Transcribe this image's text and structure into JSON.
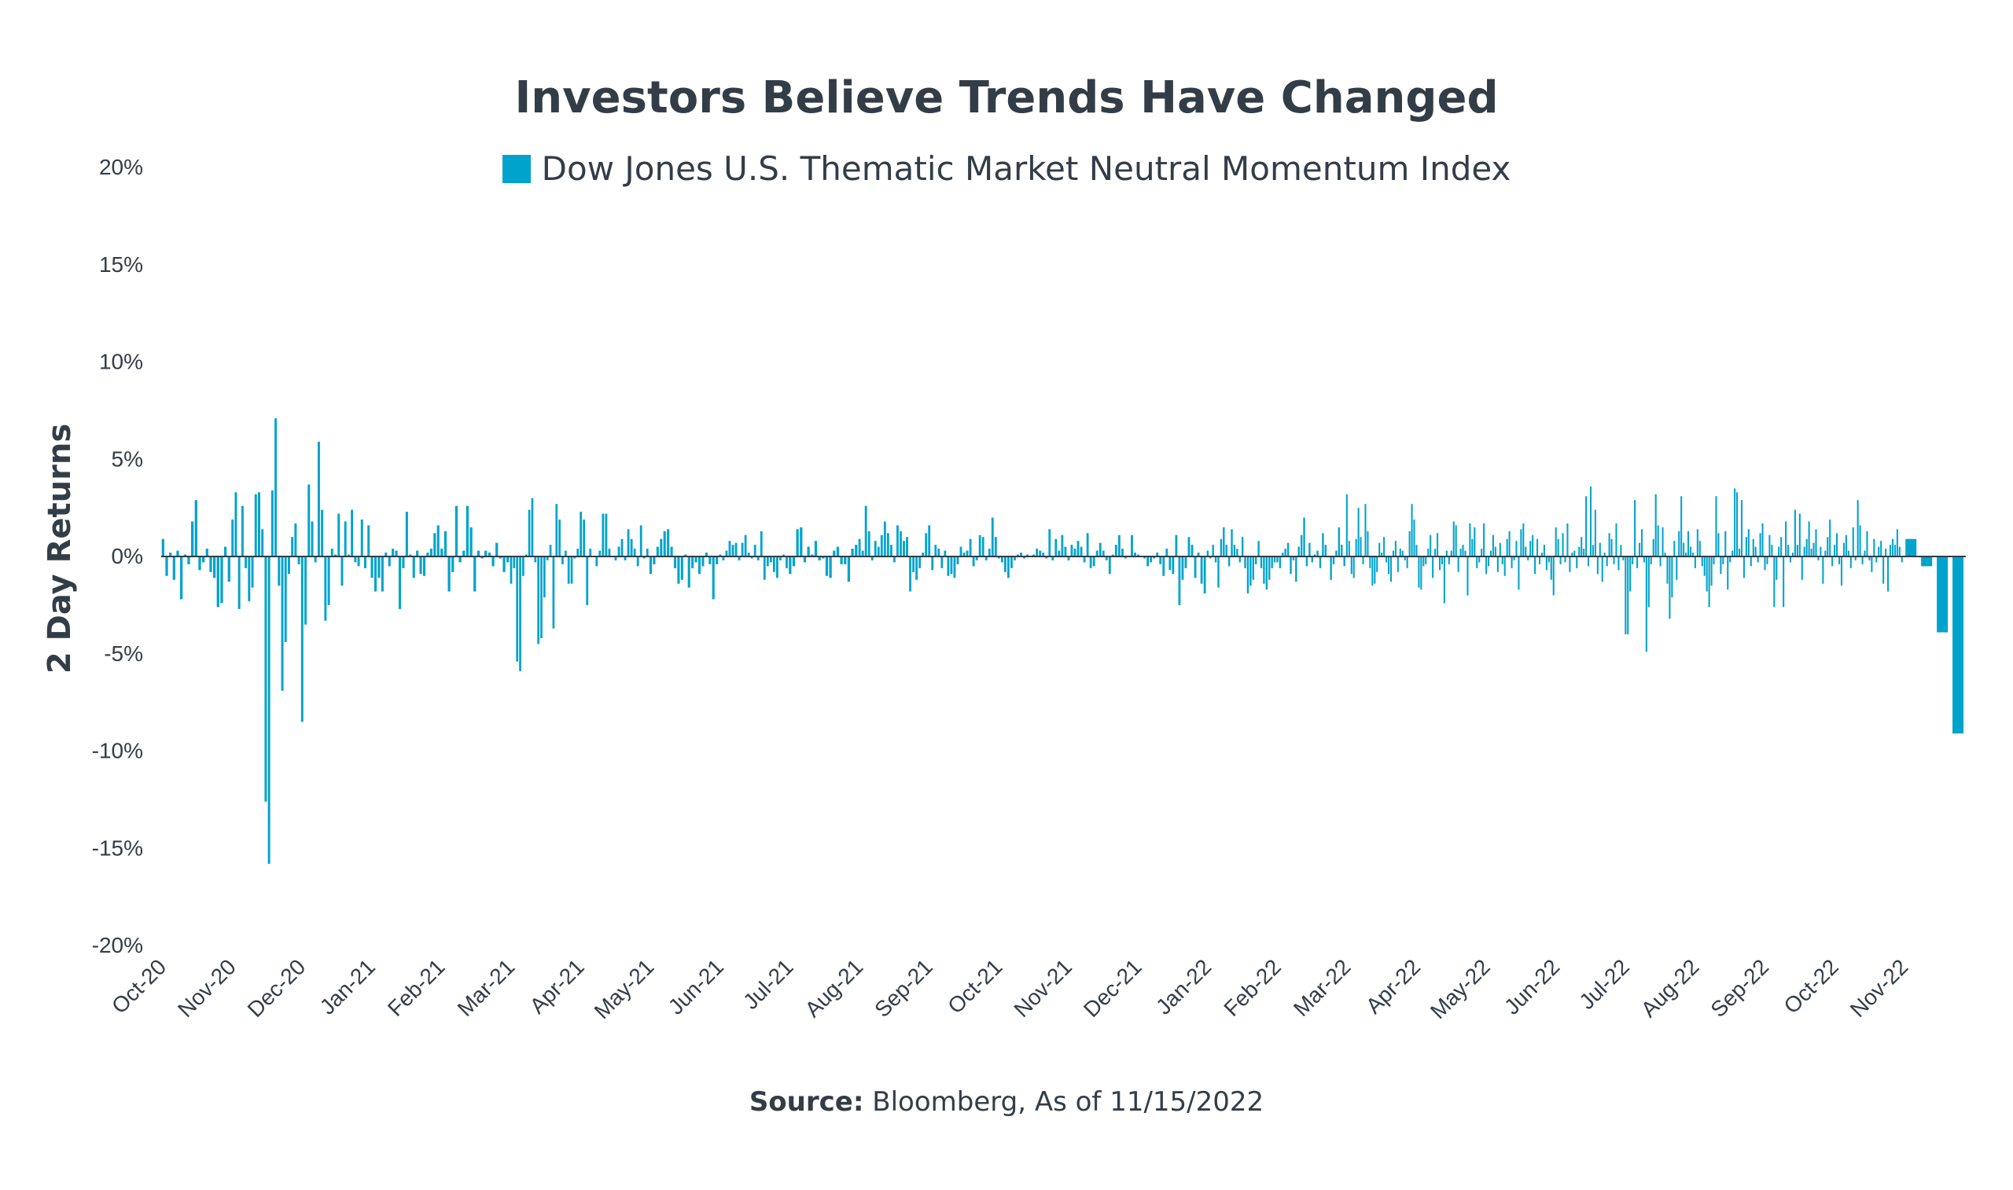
{
  "chart_data": {
    "type": "bar",
    "title": "Investors Believe Trends Have Changed",
    "ylabel": "2 Day Returns",
    "xlabel": "",
    "ylim": [
      -20,
      20
    ],
    "y_ticks": [
      "20%",
      "15%",
      "10%",
      "5%",
      "0%",
      "-5%",
      "-10%",
      "-15%",
      "-20%"
    ],
    "y_tick_values": [
      20,
      15,
      10,
      5,
      0,
      -5,
      -10,
      -15,
      -20
    ],
    "x_tick_labels": [
      "Oct-20",
      "Nov-20",
      "Dec-20",
      "Jan-21",
      "Feb-21",
      "Mar-21",
      "Apr-21",
      "May-21",
      "Jun-21",
      "Jul-21",
      "Aug-21",
      "Sep-21",
      "Oct-21",
      "Nov-21",
      "Dec-21",
      "Jan-22",
      "Feb-22",
      "Mar-22",
      "Apr-22",
      "May-22",
      "Jun-22",
      "Jul-22",
      "Aug-22",
      "Sep-22",
      "Oct-22",
      "Nov-22"
    ],
    "grid": false,
    "legend_position": "top-center",
    "series": [
      {
        "name": "Dow Jones U.S. Thematic Market Neutral Momentum Index",
        "color": "#00a3cc",
        "values_by_month": [
          [
            0.9,
            -1.0,
            0.2,
            -1.2,
            0.3,
            -2.2,
            0.1,
            -0.4,
            1.8,
            2.9,
            -0.7,
            -0.3,
            0.4,
            -0.8,
            -1.1,
            -2.6,
            -2.4,
            0.5,
            -1.3
          ],
          [
            1.9,
            3.3,
            -2.7,
            2.6,
            -0.6,
            -2.3,
            -1.6,
            3.2,
            3.3,
            1.4,
            -12.6,
            -15.8,
            3.4,
            7.1,
            -1.5,
            -6.9,
            -4.4,
            -0.9,
            1.0,
            1.7,
            -0.4
          ],
          [
            -8.5,
            -3.5,
            3.7,
            1.8,
            -0.3,
            5.9,
            2.4,
            -3.3,
            -2.5,
            0.4,
            0.1,
            2.2,
            -1.5,
            1.8,
            0.1,
            2.4,
            -0.3,
            -0.5,
            1.9,
            -0.6,
            1.6
          ],
          [
            -1.1,
            -1.8,
            -1.1,
            -1.8,
            0.2,
            -0.5,
            0.4,
            0.3,
            -2.7,
            -0.6,
            2.3,
            0.1,
            -1.1,
            0.3,
            -0.9,
            -1.0,
            0.2,
            0.4,
            1.2,
            1.6
          ],
          [
            0.4,
            1.3,
            -1.8,
            -0.8,
            2.6,
            -0.3,
            0.3,
            2.6,
            1.5,
            -1.8,
            0.3,
            -0.1,
            0.3,
            0.2,
            -0.5,
            0.7,
            -0.1,
            -0.8,
            -0.3
          ],
          [
            -1.4,
            -0.6,
            -5.4,
            -5.9,
            -1.0,
            0.1,
            2.4,
            3.0,
            -0.3,
            -4.5,
            -4.2,
            -2.1,
            -0.2,
            0.6,
            -3.7,
            2.7,
            1.9,
            -0.4,
            0.3,
            -1.4,
            -1.4,
            -0.1,
            0.4
          ],
          [
            2.3,
            1.9,
            -2.5,
            0.4,
            0.0,
            -0.5,
            0.3,
            2.2,
            2.2,
            0.4,
            0.0,
            -0.2,
            0.5,
            0.9,
            -0.2,
            1.4,
            0.9,
            0.4,
            -0.5,
            1.6,
            -0.1,
            0.4
          ],
          [
            -0.9,
            -0.4,
            0.5,
            0.9,
            1.3,
            1.4,
            0.5,
            -0.6,
            -1.4,
            -1.2,
            0.1,
            -1.6,
            -0.6,
            -0.3,
            -0.9,
            -0.5,
            0.2,
            -0.4,
            -2.2,
            -0.4
          ],
          [
            0.1,
            -0.2,
            0.3,
            0.8,
            0.6,
            0.7,
            -0.2,
            0.7,
            1.1,
            0.2,
            -0.1,
            0.6,
            -0.2,
            1.3,
            -1.2,
            -0.5,
            -0.3,
            -0.8,
            -1.1,
            -0.2,
            0.1,
            -0.6
          ],
          [
            -0.9,
            -0.5,
            1.4,
            1.5,
            -0.3,
            0.5,
            0.1,
            0.8,
            -0.2,
            -0.1,
            -1.0,
            -1.1,
            0.3,
            0.5,
            -0.4,
            -0.4,
            -1.3,
            0.4,
            0.6
          ],
          [
            0.9,
            0.3,
            2.6,
            1.3,
            -0.2,
            0.8,
            0.5,
            1.1,
            1.8,
            1.2,
            0.6,
            -0.3,
            1.6,
            1.3,
            0.8,
            1.0,
            -1.8,
            -0.8,
            -1.2,
            -0.6,
            0.2,
            1.2
          ],
          [
            1.6,
            -0.7,
            0.6,
            0.4,
            -0.6,
            0.3,
            -1.0,
            -0.9,
            -1.1,
            -0.4,
            0.5,
            0.2,
            0.3,
            0.9,
            -0.5,
            -0.2,
            1.1,
            1.0,
            -0.2,
            0.4,
            2.0,
            1.0
          ],
          [
            -0.1,
            -0.3,
            -0.8,
            -1.1,
            -0.6,
            -0.2,
            0.1,
            0.2,
            -0.1,
            0.1,
            0.0,
            0.1,
            0.4,
            0.3,
            0.2,
            -0.1,
            1.4,
            -0.2,
            0.9,
            0.3,
            1.1,
            0.5
          ],
          [
            -0.2,
            0.6,
            0.4,
            0.8,
            0.5,
            -0.3,
            1.2,
            -0.6,
            -0.5,
            0.3,
            0.7,
            0.3,
            -0.2,
            -0.9,
            0.1,
            0.6,
            1.1,
            0.4,
            -0.1,
            0.0,
            1.1,
            0.2
          ],
          [
            0.1,
            0.0,
            -0.1,
            -0.5,
            -0.3,
            -0.1,
            0.2,
            -0.4,
            -1.0,
            0.4,
            -0.7,
            -0.9,
            1.1,
            -2.5,
            -1.2,
            -0.6,
            1.0,
            0.6,
            -1.1,
            0.2,
            -1.4,
            -1.9
          ],
          [
            0.3,
            -0.1,
            0.6,
            -0.3,
            -1.6,
            0.9,
            1.5,
            0.6,
            -0.5,
            1.4,
            0.6,
            0.4,
            -0.3,
            1.0,
            -0.6,
            -1.9,
            -1.5,
            -1.2,
            -0.4,
            0.8,
            -0.6,
            -1.4,
            -1.7,
            -1.2,
            -0.6,
            -0.3
          ],
          [
            -0.3,
            -0.6,
            0.2,
            0.4,
            0.7,
            -0.9,
            -0.2,
            -1.3,
            0.5,
            1.1,
            2.0,
            -0.5,
            0.7,
            -0.3,
            0.1,
            0.3,
            -0.6,
            1.2,
            0.6,
            0.0,
            -1.2,
            -0.4,
            0.3,
            1.5,
            0.6,
            -0.5
          ],
          [
            3.2,
            0.8,
            -0.9,
            -1.1,
            0.9,
            2.5,
            1.0,
            -0.4,
            2.7,
            1.3,
            -0.6,
            -1.5,
            -1.4,
            -0.8,
            0.7,
            0.2,
            1.0,
            -0.3,
            -0.9,
            -1.3,
            0.3,
            0.8,
            -0.8,
            0.4,
            0.3,
            -0.2,
            -0.6,
            1.3,
            2.7,
            1.9
          ],
          [
            0.6,
            -1.6,
            -1.7,
            -0.5,
            -0.4,
            0.4,
            1.1,
            -1.1,
            0.4,
            1.2,
            -0.7,
            -0.4,
            -2.4,
            0.3,
            -0.4,
            0.3,
            1.8,
            1.6,
            -0.8,
            0.4,
            0.6,
            0.3,
            -2.0,
            1.7,
            0.9,
            1.5,
            -0.6,
            -0.3,
            0.4,
            1.7
          ],
          [
            -0.9,
            -0.5,
            0.3,
            1.1,
            0.5,
            -0.8,
            0.7,
            -0.4,
            -1.0,
            0.9,
            1.3,
            -0.6,
            -0.2,
            0.8,
            -1.7,
            1.4,
            1.7,
            0.5,
            -0.2,
            0.8,
            1.1,
            -0.9,
            0.9,
            -0.4,
            0.2,
            0.6,
            -0.7,
            -0.3,
            -1.2,
            -2.0
          ],
          [
            1.5,
            0.9,
            -0.4,
            1.2,
            -0.3,
            1.7,
            -0.8,
            0.2,
            0.3,
            -0.6,
            0.5,
            1.0,
            0.4,
            3.1,
            -0.5,
            3.6,
            0.6,
            2.4,
            -0.9,
            0.7,
            -1.3,
            0.2,
            -0.5,
            1.2,
            0.9,
            -0.4,
            1.7,
            -0.7,
            0.6,
            -0.2
          ],
          [
            -4.0,
            -4.0,
            -1.8,
            -0.4,
            2.9,
            -0.6,
            0.7,
            1.4,
            -0.3,
            -4.9,
            -2.6,
            -0.4,
            0.9,
            3.2,
            1.6,
            -0.5,
            1.5,
            0.2,
            -1.4,
            -3.2,
            -2.1,
            0.8,
            -1.2,
            1.3,
            3.1,
            0.7,
            0.2,
            1.3,
            0.5,
            0.2
          ],
          [
            -0.6,
            1.4,
            0.8,
            -0.5,
            -1.0,
            -1.8,
            -2.6,
            -1.5,
            -0.4,
            3.1,
            1.2,
            -0.9,
            -0.4,
            1.3,
            -1.7,
            -0.3,
            0.3,
            3.5,
            3.3,
            0.4,
            2.9,
            -1.1,
            1.0,
            1.4,
            -0.5,
            0.9,
            0.5,
            -0.3,
            1.2,
            1.7
          ],
          [
            -0.7,
            -0.4,
            1.1,
            0.6,
            -2.6,
            -1.2,
            0.5,
            1.0,
            -2.6,
            1.8,
            0.6,
            -0.3,
            0.2,
            2.4,
            0.6,
            2.2,
            -1.2,
            0.5,
            0.9,
            1.8,
            0.4,
            0.7,
            1.4,
            -0.2,
            0.5,
            -1.4,
            0.3,
            1.0,
            1.9,
            -0.5
          ],
          [
            0.6,
            1.2,
            -0.4,
            -1.5,
            0.7,
            1.1,
            0.3,
            -0.6,
            1.5,
            -0.2,
            2.9,
            1.6,
            -0.4,
            0.3,
            1.3,
            -0.2,
            -0.8,
            0.9,
            -0.3,
            0.5,
            0.8,
            -1.4,
            0.4,
            -1.8,
            0.6,
            0.9,
            0.6,
            1.4,
            0.5,
            -0.3
          ],
          [
            0.9,
            -0.5,
            -3.9,
            -9.1
          ]
        ]
      }
    ],
    "source_label": "Source:",
    "source_text": "Bloomberg, As of 11/15/2022"
  }
}
